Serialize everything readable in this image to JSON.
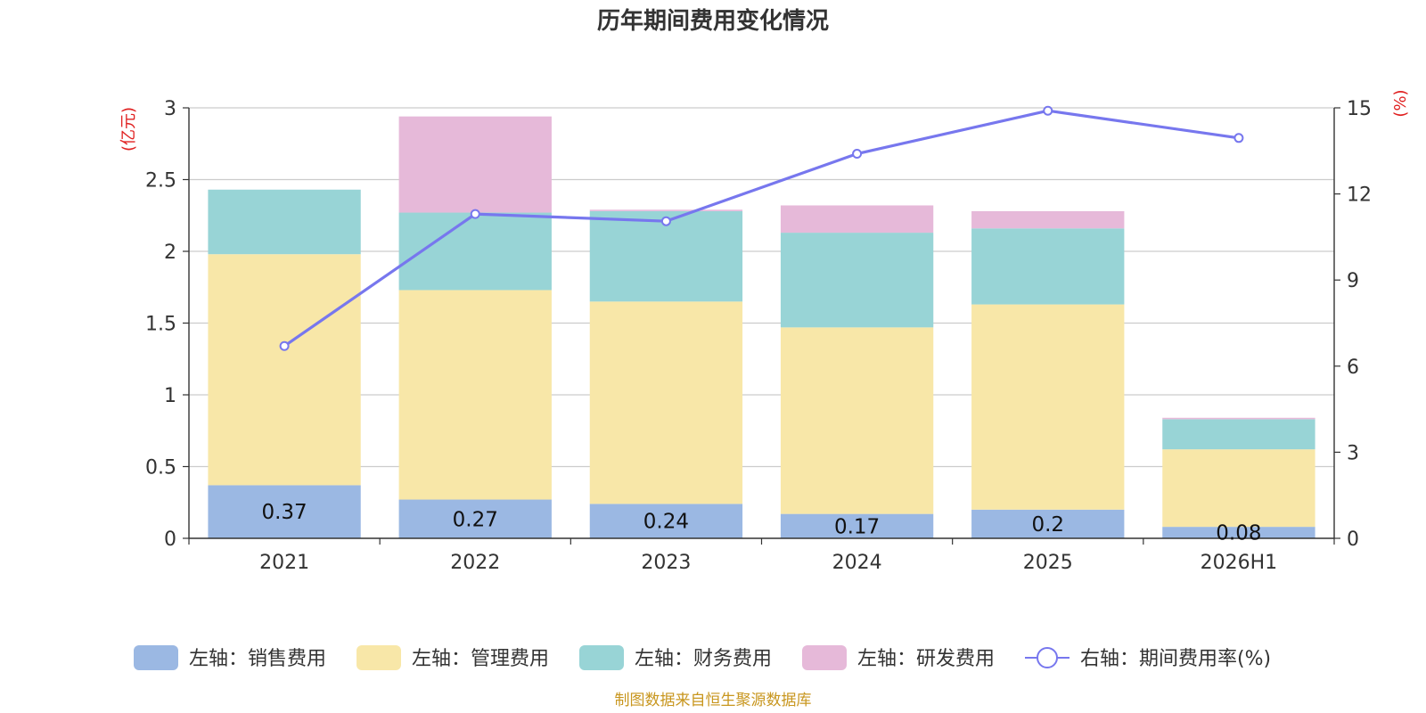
{
  "chart_data": {
    "type": "bar",
    "title": "历年期间费用变化情况",
    "left_axis_unit": "(亿元)",
    "right_axis_unit": "(%)",
    "categories": [
      "2021",
      "2022",
      "2023",
      "2024",
      "2025",
      "2026H1"
    ],
    "left_ylim": [
      0,
      3
    ],
    "left_ticks": [
      "0",
      "0.5",
      "1",
      "1.5",
      "2",
      "2.5",
      "3"
    ],
    "right_ylim": [
      0,
      15
    ],
    "right_ticks": [
      "0",
      "3",
      "6",
      "9",
      "12",
      "15"
    ],
    "grid": true,
    "legend_position": "bottom",
    "series": [
      {
        "name": "左轴：销售费用",
        "type": "bar",
        "axis": "left",
        "color": "#9bb8e3",
        "values": [
          0.37,
          0.27,
          0.24,
          0.17,
          0.2,
          0.08
        ],
        "labels": [
          "0.37",
          "0.27",
          "0.24",
          "0.17",
          "0.2",
          "0.08"
        ]
      },
      {
        "name": "左轴：管理费用",
        "type": "bar",
        "axis": "left",
        "color": "#f8e7a8",
        "values": [
          1.61,
          1.46,
          1.41,
          1.3,
          1.43,
          0.54
        ]
      },
      {
        "name": "左轴：财务费用",
        "type": "bar",
        "axis": "left",
        "color": "#98d4d6",
        "values": [
          0.45,
          0.54,
          0.63,
          0.66,
          0.53,
          0.21
        ]
      },
      {
        "name": "左轴：研发费用",
        "type": "bar",
        "axis": "left",
        "color": "#e6b9d9",
        "values": [
          0,
          0.67,
          0.01,
          0.19,
          0.12,
          0.01
        ]
      },
      {
        "name": "右轴：期间费用率(%)",
        "type": "line",
        "axis": "right",
        "color": "#7777ee",
        "values": [
          6.7,
          11.3,
          11.05,
          13.4,
          14.9,
          13.95
        ]
      }
    ]
  },
  "footer": {
    "source": "制图数据来自恒生聚源数据库"
  }
}
